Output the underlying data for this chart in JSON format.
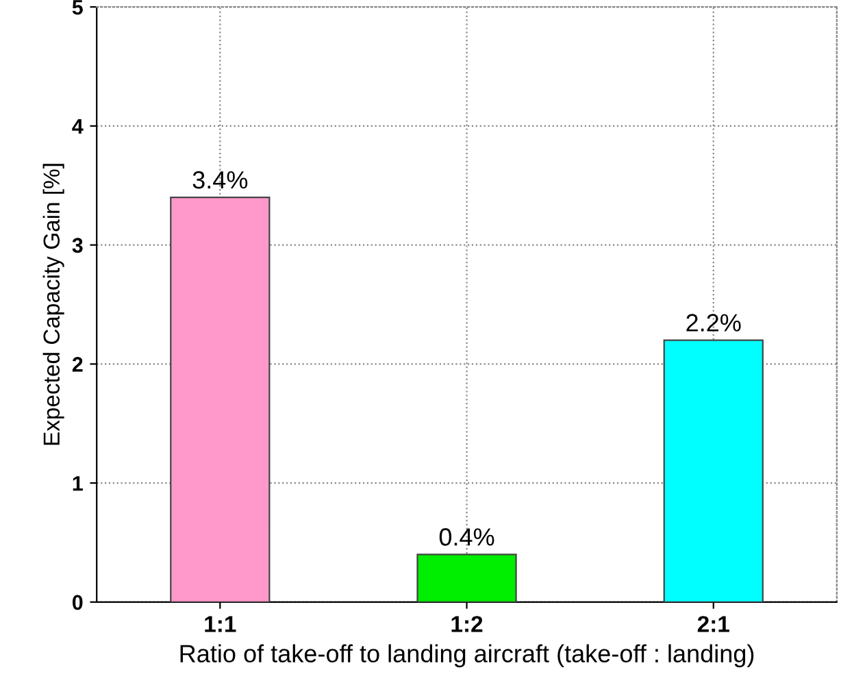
{
  "chart_data": {
    "type": "bar",
    "xlabel": "Ratio of take-off to landing aircraft (take-off : landing)",
    "ylabel": "Expected Capacity Gain [%]",
    "categories": [
      "1:1",
      "1:2",
      "2:1"
    ],
    "values": [
      3.4,
      0.4,
      2.2
    ],
    "colors": [
      "#ff99cc",
      "#00ee00",
      "#00ffff"
    ],
    "value_labels": [
      "3.4%",
      "0.4%",
      "2.2%"
    ],
    "ylim": [
      0,
      5
    ],
    "yticks": [
      0,
      1,
      2,
      3,
      4,
      5
    ],
    "grid": true
  }
}
